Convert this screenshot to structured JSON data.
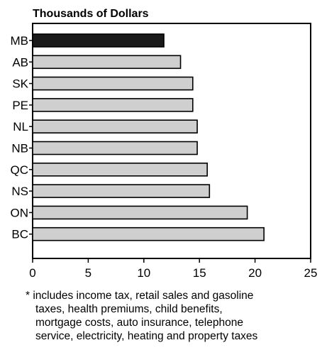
{
  "chart_data": {
    "type": "bar",
    "orientation": "horizontal",
    "ylabel": "Thousands of Dollars",
    "xlabel": "",
    "categories": [
      "MB",
      "AB",
      "SK",
      "PE",
      "NL",
      "NB",
      "QC",
      "NS",
      "ON",
      "BC"
    ],
    "values": [
      11.8,
      13.3,
      14.4,
      14.4,
      14.8,
      14.8,
      15.7,
      15.9,
      19.3,
      20.8
    ],
    "xlim": [
      0,
      25
    ],
    "xticks": [
      "0",
      "5",
      "10",
      "15",
      "20",
      "25"
    ],
    "grid": false,
    "highlight_category": "MB",
    "colors": {
      "highlight": "#1a1a1a",
      "bar": "#cfcfcf",
      "stroke": "#000000"
    }
  },
  "footnote": {
    "lines": [
      "* includes income tax, retail sales and gasoline",
      "taxes, health premiums, child benefits,",
      "mortgage costs, auto insurance, telephone",
      "service, electricity, heating and property taxes"
    ]
  }
}
